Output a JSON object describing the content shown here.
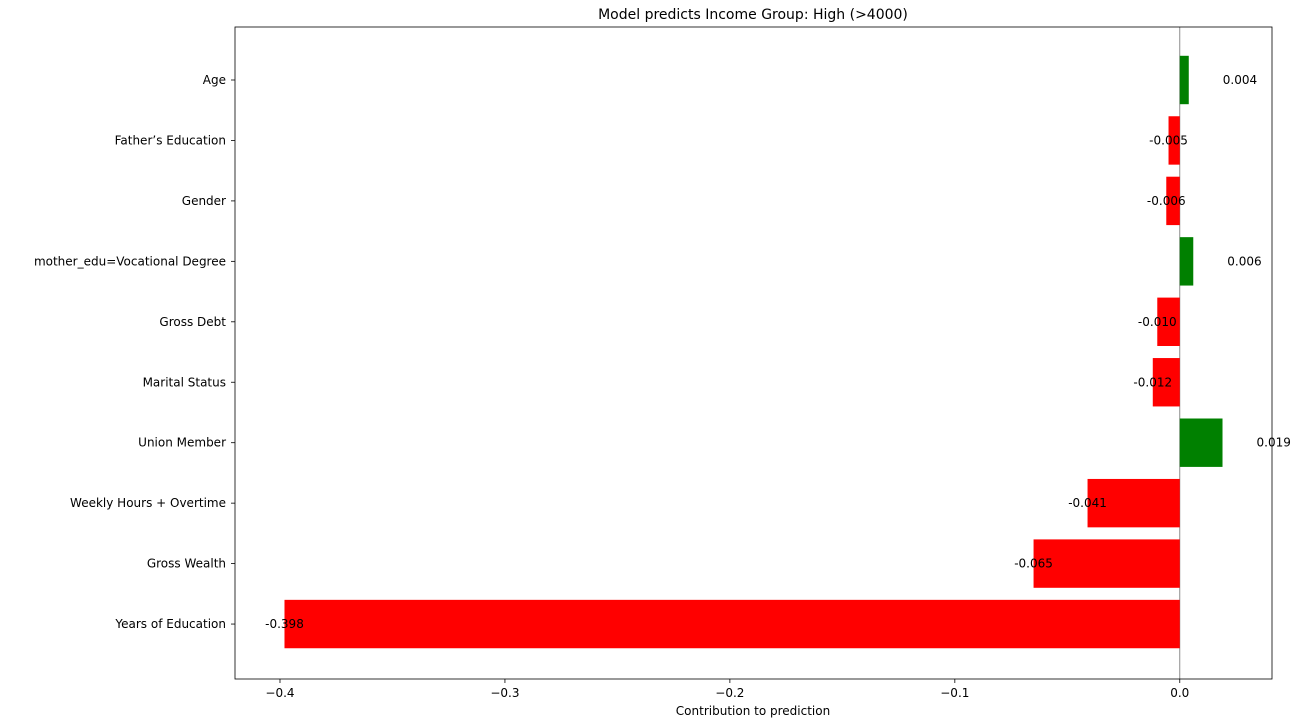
{
  "chart_data": {
    "type": "bar",
    "orientation": "horizontal",
    "title": "Model predicts Income Group: High (>4000)",
    "xlabel": "Contribution to prediction",
    "ylabel": "",
    "xlim": [
      -0.42,
      0.041
    ],
    "xticks": [
      -0.4,
      -0.3,
      -0.2,
      -0.1,
      0.0
    ],
    "xtick_labels": [
      "−0.4",
      "−0.3",
      "−0.2",
      "−0.1",
      "0.0"
    ],
    "categories": [
      "Age",
      "Father’s Education",
      "Gender",
      "mother_edu=Vocational Degree",
      "Gross Debt",
      "Marital Status",
      "Union Member",
      "Weekly Hours + Overtime",
      "Gross Wealth",
      "Years of Education"
    ],
    "values": [
      0.004,
      -0.005,
      -0.006,
      0.006,
      -0.01,
      -0.012,
      0.019,
      -0.041,
      -0.065,
      -0.398
    ],
    "value_labels": [
      "0.004",
      "-0.005",
      "-0.006",
      "0.006",
      "-0.010",
      "-0.012",
      "0.019",
      "-0.041",
      "-0.065",
      "-0.398"
    ],
    "colors": {
      "positive": "#008000",
      "negative": "#ff0000",
      "zero_line": "#808080",
      "axes": "#000000"
    },
    "grid": false,
    "legend": "none"
  }
}
